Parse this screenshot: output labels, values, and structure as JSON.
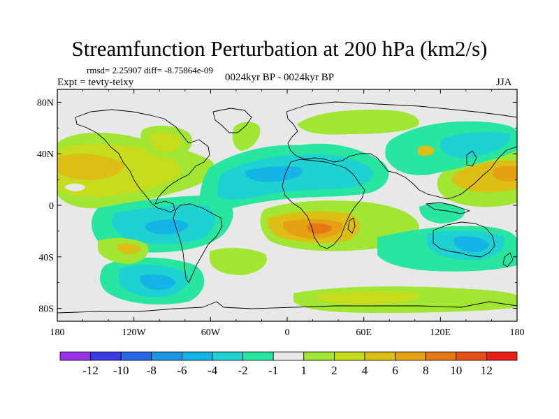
{
  "title": "Streamfunction Perturbation at 200 hPa (km2/s)",
  "stats": "rmsd= 2.25907 diff= -8.75864e-09",
  "center_label": "0024kyr BP - 0024kyr BP",
  "left_label": "Expt = tevty-teixy",
  "right_label": "JJA",
  "map": {
    "projection": "cylindrical-equidistant",
    "lon_range": [
      -180,
      180
    ],
    "lat_range": [
      -90,
      90
    ],
    "x_ticks": [
      {
        "lon": -180,
        "label": "180"
      },
      {
        "lon": -120,
        "label": "120W"
      },
      {
        "lon": -60,
        "label": "60W"
      },
      {
        "lon": 0,
        "label": "0"
      },
      {
        "lon": 60,
        "label": "60E"
      },
      {
        "lon": 120,
        "label": "120E"
      },
      {
        "lon": 180,
        "label": "180"
      }
    ],
    "y_ticks": [
      {
        "lat": 80,
        "label": "80N"
      },
      {
        "lat": 40,
        "label": "40N"
      },
      {
        "lat": 0,
        "label": "0"
      },
      {
        "lat": -40,
        "label": "40S"
      },
      {
        "lat": -80,
        "label": "80S"
      }
    ],
    "background_color": "#e8e8e8",
    "coastline_color": "#000000"
  },
  "colorbar": {
    "levels": [
      -12,
      -10,
      -8,
      -6,
      -4,
      -2,
      -1,
      1,
      2,
      4,
      6,
      8,
      10,
      12
    ],
    "labels": [
      "-12",
      "-10",
      "-8",
      "-6",
      "-4",
      "-2",
      "-1",
      "1",
      "2",
      "4",
      "6",
      "8",
      "10",
      "12"
    ],
    "colors": [
      "#9932e6",
      "#3c3ce6",
      "#2868e6",
      "#1e96e6",
      "#14b4e6",
      "#1ed2d2",
      "#28e6a0",
      "#e8e8e8",
      "#a0e632",
      "#c8dc1e",
      "#dcbe14",
      "#e6a014",
      "#e67814",
      "#e65014",
      "#e61e14"
    ]
  }
}
